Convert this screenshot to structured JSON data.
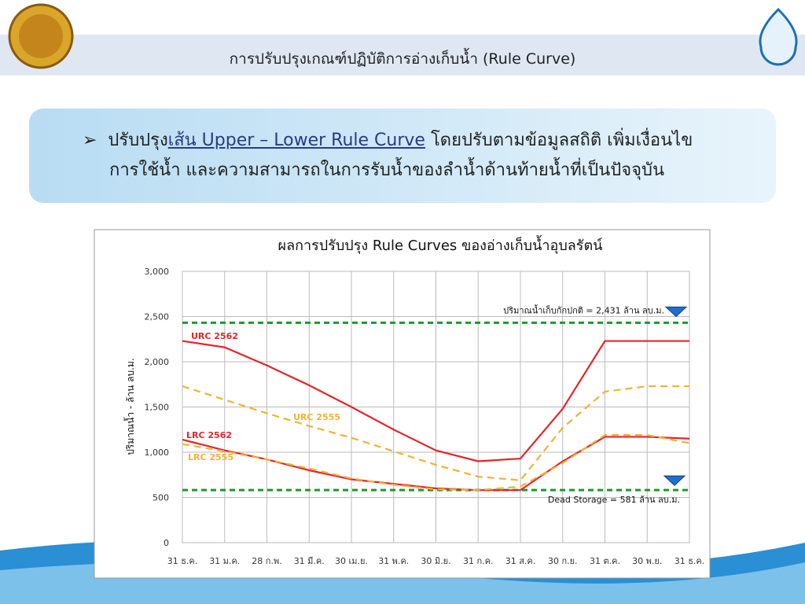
{
  "header": {
    "title": "การปรับปรุงเกณฑ์ปฏิบัติการอ่างเก็บน้ำ (Rule Curve)"
  },
  "bullet": {
    "lead": "ปรับปรุง",
    "underlined": "เส้น Upper – Lower Rule Curve",
    "rest": "โดยปรับตามข้อมูลสถิติ เพิ่มเงื่อนไข",
    "line2": "การใช้น้ำ และความสามารถในการรับน้ำของลำน้ำด้านท้ายน้ำที่เป็นปัจจุบัน"
  },
  "chart_data": {
    "type": "line",
    "title": "ผลการปรับปรุง Rule Curves ของอ่างเก็บน้ำอุบลรัตน์",
    "y_label": "ปริมาณน้ำ - ล้าน ลบ.ม.",
    "categories": [
      "31 ธ.ค.",
      "31 ม.ค.",
      "28 ก.พ.",
      "31 มี.ค.",
      "30 เม.ย.",
      "31 พ.ค.",
      "30 มิ.ย.",
      "31 ก.ค.",
      "31 ส.ค.",
      "30 ก.ย.",
      "31 ต.ค.",
      "30 พ.ย.",
      "31 ธ.ค."
    ],
    "ylim": [
      0,
      3000
    ],
    "yticks": [
      0,
      500,
      {
        "value": 1000,
        "label": "1,000"
      },
      {
        "value": 1500,
        "label": "1,500"
      },
      {
        "value": 2000,
        "label": "2,000"
      },
      {
        "value": 2500,
        "label": "2,500"
      },
      {
        "value": 3000,
        "label": "3,000"
      }
    ],
    "grid": true,
    "series": [
      {
        "name": "URC 2562",
        "color": "#e3262b",
        "dashed": false,
        "values": [
          2230,
          2160,
          1960,
          1740,
          1500,
          1250,
          1020,
          900,
          930,
          1480,
          2230,
          2230,
          2230
        ]
      },
      {
        "name": "LRC 2562",
        "color": "#e3262b",
        "dashed": false,
        "values": [
          1140,
          1020,
          920,
          800,
          700,
          650,
          600,
          581,
          581,
          900,
          1170,
          1170,
          1150
        ]
      },
      {
        "name": "URC 2555",
        "color": "#f2b233",
        "dashed": true,
        "values": [
          1730,
          1580,
          1430,
          1290,
          1160,
          1010,
          860,
          730,
          690,
          1270,
          1670,
          1730,
          1730
        ]
      },
      {
        "name": "LRC 2555",
        "color": "#f2b233",
        "dashed": true,
        "values": [
          1090,
          1010,
          920,
          820,
          710,
          640,
          590,
          581,
          620,
          880,
          1190,
          1190,
          1100
        ]
      }
    ],
    "reference_lines": [
      {
        "value": 2431,
        "label": "ปริมาณน้ำเก็บกักปกติ = 2,431 ล้าน ลบ.ม.",
        "color": "#1a9a2a"
      },
      {
        "value": 581,
        "label": "Dead Storage = 581 ล้าน ลบ.ม.",
        "color": "#1a9a2a"
      }
    ]
  }
}
